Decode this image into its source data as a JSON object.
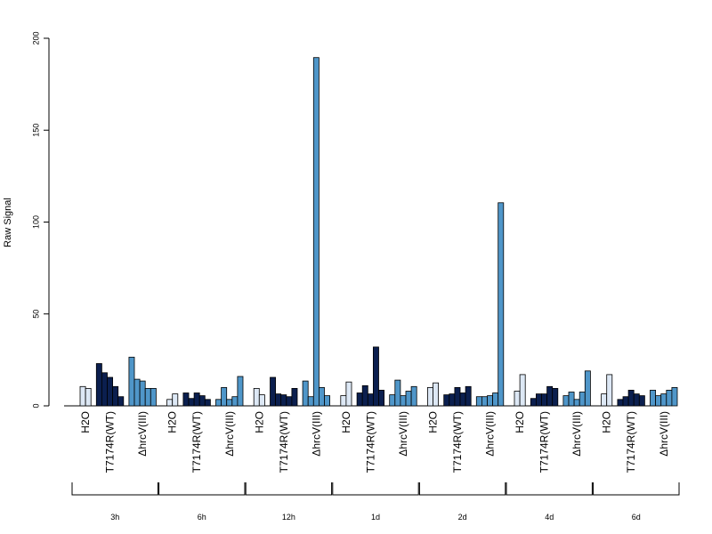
{
  "chart_data": {
    "type": "bar",
    "ylabel": "Raw Signal",
    "xlabel": "",
    "ylim": [
      0,
      200
    ],
    "yticks": [
      0,
      50,
      100,
      150,
      200
    ],
    "grid": false,
    "colors": {
      "H2O": "#dde8f5",
      "T7174R(WT)": "#0b1f4f",
      "ΔhrcV(III)": "#4f96c9"
    },
    "timepoints": [
      {
        "label": "3h",
        "groups": [
          {
            "name": "H2O",
            "values": [
              10.5,
              9.5
            ]
          },
          {
            "name": "T7174R(WT)",
            "values": [
              23,
              18,
              15.5,
              10.5,
              5
            ]
          },
          {
            "name": "ΔhrcV(III)",
            "values": [
              26.5,
              14.5,
              13.5,
              9.5,
              9.5
            ]
          }
        ]
      },
      {
        "label": "6h",
        "groups": [
          {
            "name": "H2O",
            "values": [
              3.5,
              6.5
            ]
          },
          {
            "name": "T7174R(WT)",
            "values": [
              7,
              4,
              7,
              5.5,
              3.5
            ]
          },
          {
            "name": "ΔhrcV(III)",
            "values": [
              3.5,
              10,
              3.5,
              5,
              16
            ]
          }
        ]
      },
      {
        "label": "12h",
        "groups": [
          {
            "name": "H2O",
            "values": [
              9.5,
              6
            ]
          },
          {
            "name": "T7174R(WT)",
            "values": [
              15.5,
              6.5,
              6,
              5,
              9.5
            ]
          },
          {
            "name": "ΔhrcV(III)",
            "values": [
              13.5,
              5,
              189.5,
              10,
              5.5
            ]
          }
        ]
      },
      {
        "label": "1d",
        "groups": [
          {
            "name": "H2O",
            "values": [
              5.5,
              13
            ]
          },
          {
            "name": "T7174R(WT)",
            "values": [
              7,
              11,
              6.5,
              32,
              8.5
            ]
          },
          {
            "name": "ΔhrcV(III)",
            "values": [
              6,
              14,
              5.5,
              8,
              10.5
            ]
          }
        ]
      },
      {
        "label": "2d",
        "groups": [
          {
            "name": "H2O",
            "values": [
              10,
              12.5
            ]
          },
          {
            "name": "T7174R(WT)",
            "values": [
              6,
              6.5,
              10,
              7,
              10.5
            ]
          },
          {
            "name": "ΔhrcV(III)",
            "values": [
              5,
              5,
              5.5,
              7,
              110.5
            ]
          }
        ]
      },
      {
        "label": "4d",
        "groups": [
          {
            "name": "H2O",
            "values": [
              8,
              17
            ]
          },
          {
            "name": "T7174R(WT)",
            "values": [
              4,
              6.5,
              6.5,
              10.5,
              9.5
            ]
          },
          {
            "name": "ΔhrcV(III)",
            "values": [
              5.5,
              7.5,
              3.5,
              7.5,
              19
            ]
          }
        ]
      },
      {
        "label": "6d",
        "groups": [
          {
            "name": "H2O",
            "values": [
              6.5,
              17
            ]
          },
          {
            "name": "T7174R(WT)",
            "values": [
              3.5,
              5,
              8.5,
              6.5,
              5.5
            ]
          },
          {
            "name": "ΔhrcV(III)",
            "values": [
              8.5,
              5.5,
              6.5,
              8.5,
              10
            ]
          }
        ]
      }
    ]
  }
}
